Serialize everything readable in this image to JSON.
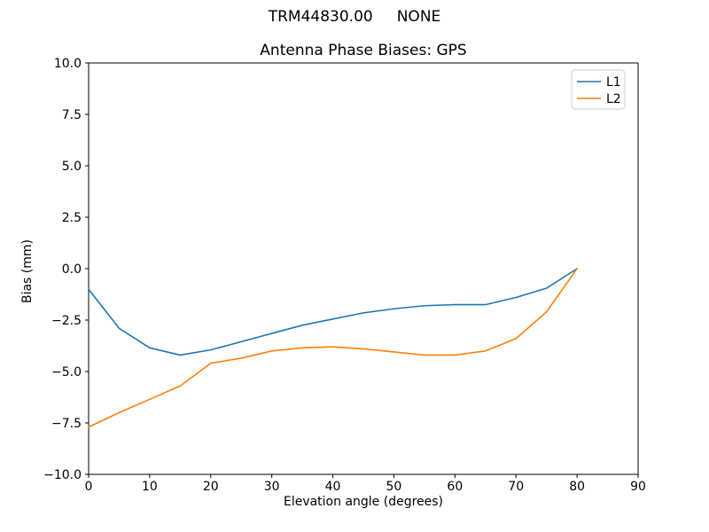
{
  "suptitle": "TRM44830.00     NONE",
  "chart_data": {
    "type": "line",
    "title": "Antenna Phase Biases: GPS",
    "xlabel": "Elevation angle (degrees)",
    "ylabel": "Bias (mm)",
    "xlim": [
      0,
      90
    ],
    "ylim": [
      -10,
      10
    ],
    "xticks": [
      0,
      10,
      20,
      30,
      40,
      50,
      60,
      70,
      80,
      90
    ],
    "xtick_labels": [
      "0",
      "10",
      "20",
      "30",
      "40",
      "50",
      "60",
      "70",
      "80",
      "90"
    ],
    "yticks": [
      -10,
      -7.5,
      -5,
      -2.5,
      0,
      2.5,
      5,
      7.5,
      10
    ],
    "ytick_labels": [
      "−10.0",
      "−7.5",
      "−5.0",
      "−2.5",
      "0.0",
      "2.5",
      "5.0",
      "7.5",
      "10.0"
    ],
    "grid": false,
    "legend": {
      "position": "upper right",
      "entries": [
        "L1",
        "L2"
      ]
    },
    "axis_color": "#000000",
    "background_color": "#ffffff",
    "legend_border_color": "#cccccc",
    "x": [
      0,
      5,
      10,
      15,
      20,
      25,
      30,
      35,
      40,
      45,
      50,
      55,
      60,
      65,
      70,
      75,
      80
    ],
    "series": [
      {
        "name": "L1",
        "color": "#1f77b4",
        "values": [
          -1.0,
          -2.9,
          -3.85,
          -4.2,
          -3.95,
          -3.55,
          -3.15,
          -2.75,
          -2.45,
          -2.15,
          -1.95,
          -1.8,
          -1.75,
          -1.75,
          -1.4,
          -0.95,
          0.0
        ]
      },
      {
        "name": "L2",
        "color": "#ff7f0e",
        "values": [
          -7.7,
          -7.0,
          -6.35,
          -5.7,
          -4.6,
          -4.35,
          -4.0,
          -3.85,
          -3.8,
          -3.9,
          -4.05,
          -4.2,
          -4.2,
          -4.0,
          -3.4,
          -2.1,
          0.0
        ]
      }
    ]
  }
}
